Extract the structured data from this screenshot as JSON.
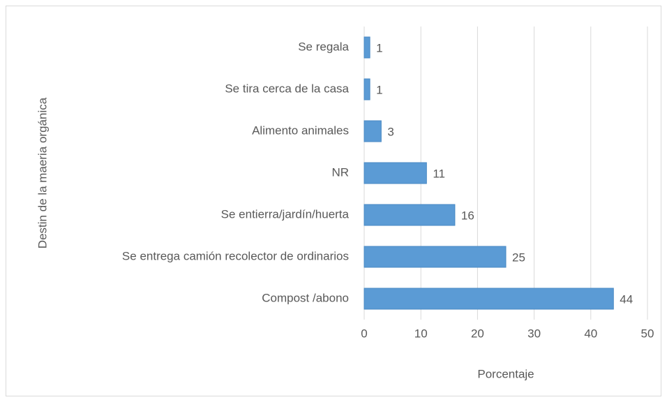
{
  "chart_data": {
    "type": "hbar",
    "categories": [
      "Se regala",
      "Se tira cerca de la casa",
      "Alimento animales",
      "NR",
      "Se entierra/jardín/huerta",
      "Se entrega camión recolector de ordinarios",
      "Compost /abono"
    ],
    "values": [
      1,
      1,
      3,
      11,
      16,
      25,
      44
    ],
    "color": "#5b9bd5",
    "xlabel": "Porcentaje",
    "ylabel": "Destin de la maeria orgánica",
    "xlim": [
      0,
      50
    ],
    "xticks": [
      0,
      10,
      20,
      30,
      40,
      50
    ],
    "grid": true
  }
}
